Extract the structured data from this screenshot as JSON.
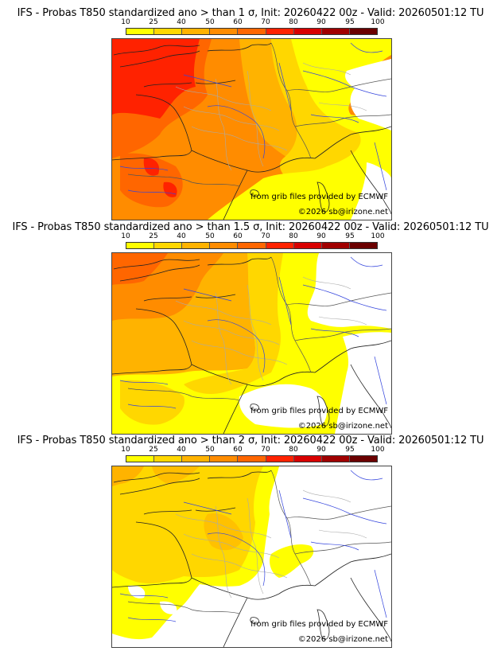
{
  "colorbar": {
    "ticks": [
      "10",
      "25",
      "40",
      "50",
      "60",
      "70",
      "80",
      "90",
      "95",
      "100"
    ],
    "colors": [
      "#ffff00",
      "#ffd700",
      "#ffb300",
      "#ff8c00",
      "#ff6600",
      "#ff2200",
      "#d80000",
      "#a00000",
      "#6b0000"
    ]
  },
  "panels": [
    {
      "title": "IFS - Probas T850  standardized ano > than 1 σ, Init: 20260422 00z - Valid: 20260501:12 TU",
      "threshold_sigma": "1",
      "credit_source": "from grib files provided by ECMWF",
      "credit_copyright": "©2026 sb@irizone.net"
    },
    {
      "title": "IFS - Probas T850  standardized ano > than 1.5 σ, Init: 20260422 00z - Valid: 20260501:12 TU",
      "threshold_sigma": "1.5",
      "credit_source": "from grib files provided by ECMWF",
      "credit_copyright": "©2026 sb@irizone.net"
    },
    {
      "title": "IFS - Probas T850  standardized ano > than 2 σ, Init: 20260422 00z - Valid: 20260501:12 TU",
      "threshold_sigma": "2",
      "credit_source": "from grib files provided by ECMWF",
      "credit_copyright": "©2026 sb@irizone.net"
    }
  ]
}
